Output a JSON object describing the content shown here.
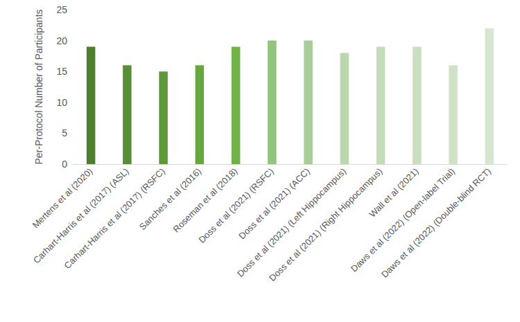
{
  "chart_data": {
    "type": "bar",
    "y_label": "Per-Protocol Number of Participants",
    "categories": [
      "Mertens et al (2020)",
      "Carhart-Harris et al (2017) (ASL)",
      "Carhart-Harris et al (2017) (RSFC)",
      "Sanches et al (2016)",
      "Roseman et al (2018)",
      "Doss et al (2021) (RSFC)",
      "Doss et al (2021) (ACC)",
      "Doss et al (2021) (Left Hippocampus)",
      "Doss et al (2021) (Right Hippocampus)",
      "Wall et al (2021)",
      "Daws et al (2022) (Open-label Trial)",
      "Daws et al (2022) (Double-blind RCT)"
    ],
    "values": [
      19,
      16,
      15,
      16,
      19,
      20,
      20,
      18,
      19,
      19,
      16,
      22
    ],
    "colors": [
      "#4e7f31",
      "#588f36",
      "#5f9a3a",
      "#68a640",
      "#72b147",
      "#93c47d",
      "#a9cc98",
      "#bcd6b0",
      "#c5dcba",
      "#cadfbf",
      "#cfe2c6",
      "#d6e6cf"
    ],
    "ylim": [
      0,
      25
    ],
    "yticks": [
      0,
      5,
      10,
      15,
      20,
      25
    ],
    "grid": false
  }
}
